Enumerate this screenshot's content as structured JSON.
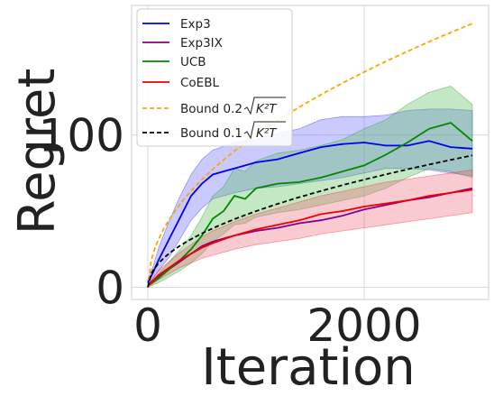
{
  "chart_data": {
    "type": "line",
    "xlabel": "Iteration",
    "ylabel": "Regret",
    "xlim": [
      -150,
      3150
    ],
    "ylim": [
      -8,
      185
    ],
    "x_ticks": [
      0,
      2000
    ],
    "x_tick_labels": [
      "0",
      "2000"
    ],
    "y_ticks": [
      0,
      100
    ],
    "y_tick_labels": [
      "0",
      "100"
    ],
    "grid": true,
    "legend_position": "top-left",
    "series": [
      {
        "name": "Exp3",
        "color": "#0000ee",
        "style": "solid",
        "band_color": "#6666ff",
        "x": [
          0,
          50,
          100,
          200,
          300,
          400,
          500,
          600,
          800,
          1000,
          1200,
          1400,
          1600,
          1800,
          2000,
          2200,
          2400,
          2600,
          2800,
          3000
        ],
        "y": [
          3,
          10,
          18,
          32,
          46,
          60,
          68,
          74,
          78,
          82,
          84,
          88,
          92,
          94,
          95,
          93,
          93,
          96,
          92,
          91
        ],
        "lower": [
          1,
          6,
          11,
          20,
          32,
          44,
          52,
          58,
          62,
          65,
          66,
          68,
          70,
          72,
          75,
          78,
          78,
          77,
          75,
          73
        ],
        "upper": [
          5,
          14,
          26,
          44,
          60,
          74,
          84,
          90,
          95,
          97,
          101,
          104,
          110,
          112,
          112,
          113,
          116,
          117,
          117,
          116
        ]
      },
      {
        "name": "Exp3IX",
        "color": "#880088",
        "style": "solid",
        "band_color": null,
        "x": [
          0,
          100,
          200,
          300,
          400,
          500,
          600,
          800,
          1000,
          1200,
          1400,
          1600,
          1800,
          2000,
          2200,
          2400,
          2600,
          2800,
          3000
        ],
        "y": [
          2,
          7,
          12,
          17,
          22,
          27,
          30,
          34,
          37,
          39,
          42,
          44,
          47,
          51,
          54,
          57,
          59,
          62,
          65
        ]
      },
      {
        "name": "UCB",
        "color": "#008800",
        "style": "solid",
        "band_color": "#55bb55",
        "x": [
          0,
          100,
          200,
          300,
          400,
          500,
          600,
          700,
          800,
          900,
          1000,
          1200,
          1400,
          1600,
          1800,
          2000,
          2200,
          2400,
          2600,
          2800,
          3000
        ],
        "y": [
          1,
          6,
          12,
          18,
          25,
          34,
          45,
          50,
          60,
          58,
          65,
          68,
          69,
          72,
          76,
          80,
          87,
          95,
          104,
          108,
          96
        ],
        "lower": [
          0,
          3,
          7,
          11,
          16,
          22,
          30,
          35,
          41,
          42,
          46,
          49,
          51,
          54,
          57,
          60,
          65,
          72,
          78,
          76,
          72
        ],
        "upper": [
          2,
          9,
          17,
          25,
          34,
          46,
          60,
          66,
          78,
          76,
          83,
          88,
          90,
          93,
          97,
          104,
          110,
          120,
          128,
          132,
          120
        ]
      },
      {
        "name": "CoEBL",
        "color": "#ee0000",
        "style": "solid",
        "band_color": "#ee6677",
        "x": [
          0,
          100,
          200,
          300,
          400,
          500,
          600,
          800,
          1000,
          1200,
          1400,
          1600,
          1800,
          2000,
          2200,
          2400,
          2600,
          2800,
          3000
        ],
        "y": [
          1,
          8,
          13,
          18,
          22,
          26,
          29,
          34,
          38,
          41,
          44,
          48,
          50,
          53,
          55,
          57,
          60,
          62,
          64
        ],
        "lower": [
          0,
          5,
          9,
          13,
          16,
          19,
          21,
          25,
          28,
          30,
          32,
          35,
          37,
          39,
          41,
          43,
          45,
          47,
          49
        ],
        "upper": [
          2,
          11,
          17,
          23,
          28,
          33,
          37,
          43,
          48,
          52,
          56,
          60,
          63,
          66,
          69,
          71,
          73,
          75,
          77
        ]
      },
      {
        "name": "Bound 0.2√(K²T)",
        "color": "#ffa500",
        "style": "dashed",
        "band_color": null,
        "formula": "3.16*sqrt(x)"
      },
      {
        "name": "Bound 0.1√(K²T)",
        "color": "#000000",
        "style": "dashed",
        "band_color": null,
        "formula": "1.58*sqrt(x)"
      }
    ]
  }
}
